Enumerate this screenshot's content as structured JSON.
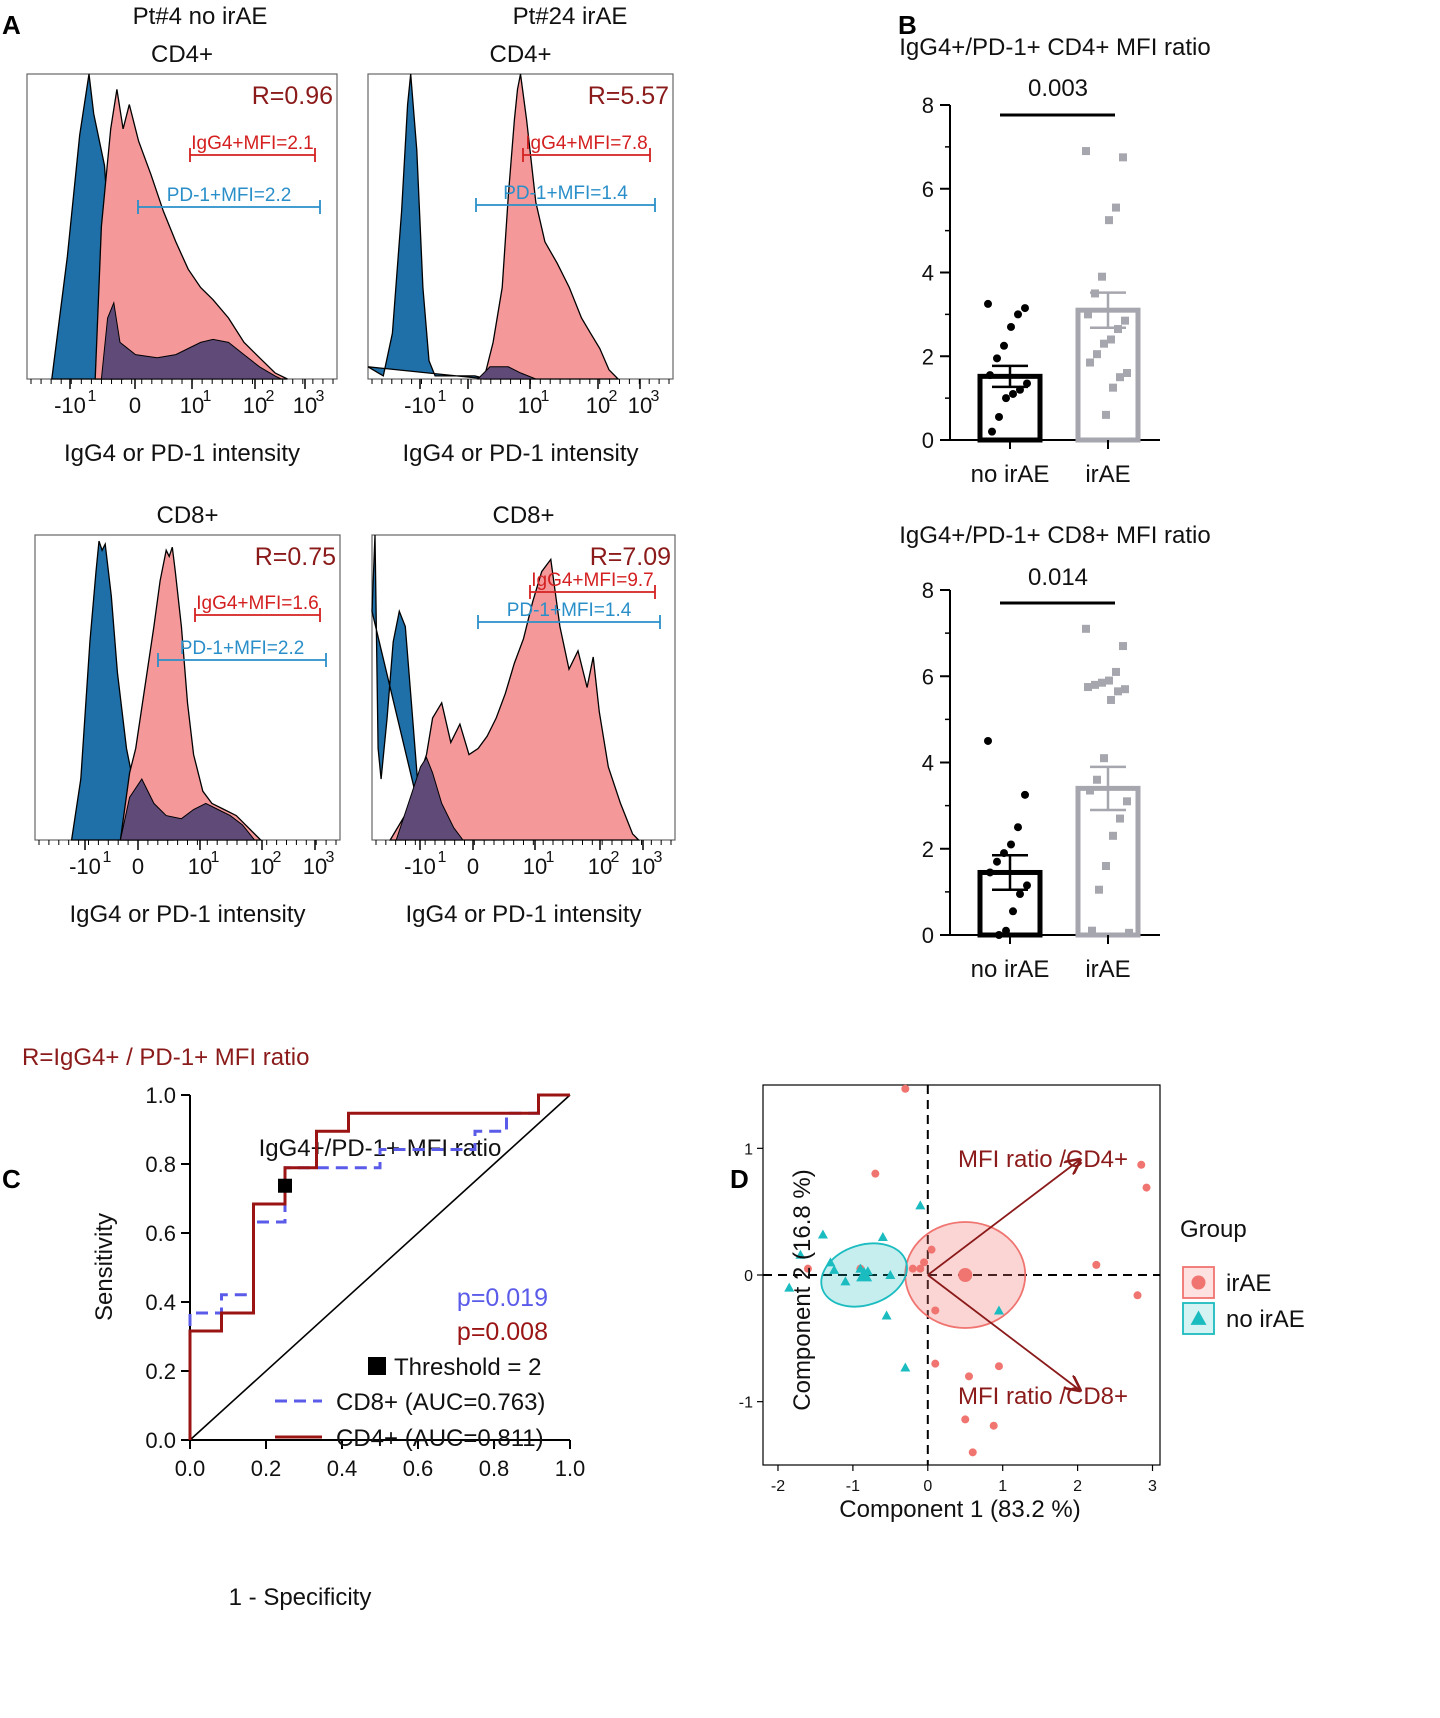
{
  "figure": {
    "panel_labels": [
      "A",
      "B",
      "C",
      "D"
    ]
  },
  "colors": {
    "blue_fill": "#1f6fa8",
    "red_fill": "#f4989a",
    "overlap_fill": "#5f4a78",
    "dark_red": "#8b1a1a",
    "mfi_red": "#d42020",
    "mfi_blue": "#2a8fc9",
    "bar_black": "#000000",
    "bar_gray": "#a6a6ae",
    "roc_blue": "#5b5bea",
    "roc_red": "#9b1414",
    "pca_red": "#f07470",
    "pca_teal": "#1bbcc0"
  },
  "panelA": {
    "col_headers": [
      "Pt#4 no irAE",
      "Pt#24 irAE"
    ],
    "footnote": "R=IgG4+ / PD-1+ MFI ratio",
    "xlabel": "IgG4 or PD-1 intensity",
    "ticks": [
      "-10",
      "0",
      "10",
      "10",
      "10"
    ],
    "tick_exps": [
      "1",
      "",
      "1",
      "2",
      "3"
    ],
    "plots": [
      {
        "title": "CD4+",
        "ratio": "R=0.96",
        "igg4_label": "IgG4+MFI=2.1",
        "pd1_label": "PD-1+MFI=2.2",
        "shape": "p1"
      },
      {
        "title": "CD4+",
        "ratio": "R=5.57",
        "igg4_label": "IgG4+MFI=7.8",
        "pd1_label": "PD-1+MFI=1.4",
        "shape": "p2"
      },
      {
        "title": "CD8+",
        "ratio": "R=0.75",
        "igg4_label": "IgG4+MFI=1.6",
        "pd1_label": "PD-1+MFI=2.2",
        "shape": "p3"
      },
      {
        "title": "CD8+",
        "ratio": "R=7.09",
        "igg4_label": "IgG4+MFI=9.7",
        "pd1_label": "PD-1+MFI=1.4",
        "shape": "p4"
      }
    ]
  },
  "chart_data": [
    {
      "type": "bar",
      "panel": "B-top",
      "title": "IgG4+/PD-1+ CD4+ MFI ratio",
      "categories": [
        "no irAE",
        "irAE"
      ],
      "values": [
        1.52,
        3.1
      ],
      "sem": [
        0.25,
        0.42
      ],
      "p_value": "0.003",
      "ylim": [
        0,
        8
      ],
      "yticks": [
        "0",
        "2",
        "4",
        "6",
        "8"
      ],
      "points": [
        [
          3.25,
          3.15,
          3.0,
          2.7,
          2.25,
          1.95,
          1.55,
          1.35,
          1.2,
          1.1,
          1.0,
          0.55,
          0.2
        ],
        [
          6.9,
          6.75,
          5.55,
          5.25,
          3.9,
          3.5,
          3.0,
          2.85,
          2.65,
          2.4,
          2.3,
          2.05,
          1.85,
          1.6,
          1.5,
          1.25,
          0.6
        ]
      ]
    },
    {
      "type": "bar",
      "panel": "B-bottom",
      "title": "IgG4+/PD-1+ CD8+ MFI ratio",
      "categories": [
        "no irAE",
        "irAE"
      ],
      "values": [
        1.45,
        3.4
      ],
      "sem": [
        0.4,
        0.5
      ],
      "p_value": "0.014",
      "ylim": [
        0,
        8
      ],
      "yticks": [
        "0",
        "2",
        "4",
        "6",
        "8"
      ],
      "points": [
        [
          4.5,
          3.25,
          2.5,
          2.1,
          1.9,
          1.7,
          1.45,
          1.15,
          0.95,
          0.55,
          0.1,
          0.0
        ],
        [
          7.1,
          6.7,
          6.1,
          5.9,
          5.85,
          5.8,
          5.75,
          5.7,
          5.65,
          5.45,
          4.1,
          3.6,
          3.35,
          3.1,
          2.7,
          2.3,
          1.6,
          1.05,
          0.1,
          0.05
        ]
      ]
    },
    {
      "type": "line",
      "panel": "C",
      "title": "IgG4+/PD-1+ MFI ratio",
      "xlabel": "1 - Specificity",
      "ylabel": "Sensitivity",
      "xlim": [
        0,
        1
      ],
      "ylim": [
        0,
        1
      ],
      "ticks": [
        "0.0",
        "0.2",
        "0.4",
        "0.6",
        "0.8",
        "1.0"
      ],
      "p_values": [
        "p=0.019",
        "p=0.008"
      ],
      "threshold_label": "Threshold = 2",
      "threshold_point": [
        0.25,
        0.737
      ],
      "series": [
        {
          "name": "CD8+ (AUC=0.763)",
          "style": "dashed",
          "x": [
            0,
            0,
            0.083,
            0.083,
            0.167,
            0.167,
            0.25,
            0.25,
            0.5,
            0.5,
            0.75,
            0.75,
            0.833,
            0.833,
            0.917,
            0.917,
            1
          ],
          "y": [
            0,
            0.368,
            0.368,
            0.421,
            0.421,
            0.632,
            0.632,
            0.789,
            0.789,
            0.842,
            0.842,
            0.895,
            0.895,
            0.947,
            0.947,
            1,
            1
          ]
        },
        {
          "name": "CD4+ (AUC=0.811)",
          "style": "solid",
          "x": [
            0,
            0,
            0.083,
            0.083,
            0.167,
            0.167,
            0.25,
            0.25,
            0.333,
            0.333,
            0.417,
            0.417,
            0.917,
            0.917,
            1
          ],
          "y": [
            0,
            0.316,
            0.316,
            0.368,
            0.368,
            0.684,
            0.684,
            0.789,
            0.789,
            0.895,
            0.895,
            0.947,
            0.947,
            1,
            1
          ]
        }
      ]
    },
    {
      "type": "scatter",
      "panel": "D",
      "xlabel": "Component 1 (83.2 %)",
      "ylabel": "Component 2 (16.8 %)",
      "xlim": [
        -2.2,
        3.1
      ],
      "ylim": [
        -1.5,
        1.5
      ],
      "xticks": [
        "-2",
        "-1",
        "0",
        "1",
        "2",
        "3"
      ],
      "yticks": [
        "-1",
        "0",
        "1"
      ],
      "legend_title": "Group",
      "arrows": [
        {
          "label": "MFI ratio /CD4+",
          "x": 2.03,
          "y": 0.91
        },
        {
          "label": "MFI ratio /CD8+",
          "x": 2.03,
          "y": -0.91
        }
      ],
      "series": [
        {
          "name": "irAE",
          "marker": "circle",
          "centroid": [
            0.5,
            0.0
          ],
          "x": [
            -0.3,
            -0.7,
            -1.6,
            -0.9,
            -0.2,
            -0.1,
            0.05,
            -0.05,
            0.1,
            0.1,
            0.55,
            0.95,
            2.25,
            2.85,
            2.92,
            2.8,
            0.5,
            0.88,
            0.6
          ],
          "y": [
            1.47,
            0.8,
            0.05,
            0.05,
            0.05,
            0.05,
            0.2,
            0.1,
            -0.28,
            -0.7,
            -0.8,
            -0.72,
            0.08,
            0.87,
            0.69,
            -0.16,
            -1.14,
            -1.19,
            -1.4
          ]
        },
        {
          "name": "no irAE",
          "marker": "triangle",
          "centroid": [
            -0.85,
            0.0
          ],
          "x": [
            -1.85,
            -1.7,
            -1.4,
            -1.3,
            -1.25,
            -1.1,
            -0.9,
            -0.8,
            -0.6,
            -0.55,
            -0.5,
            -0.3,
            -0.1,
            0.95
          ],
          "y": [
            -0.1,
            0.16,
            0.32,
            0.1,
            0.04,
            -0.05,
            0.05,
            0.03,
            0.3,
            -0.32,
            0.0,
            -0.73,
            0.55,
            -0.28
          ]
        }
      ]
    }
  ]
}
